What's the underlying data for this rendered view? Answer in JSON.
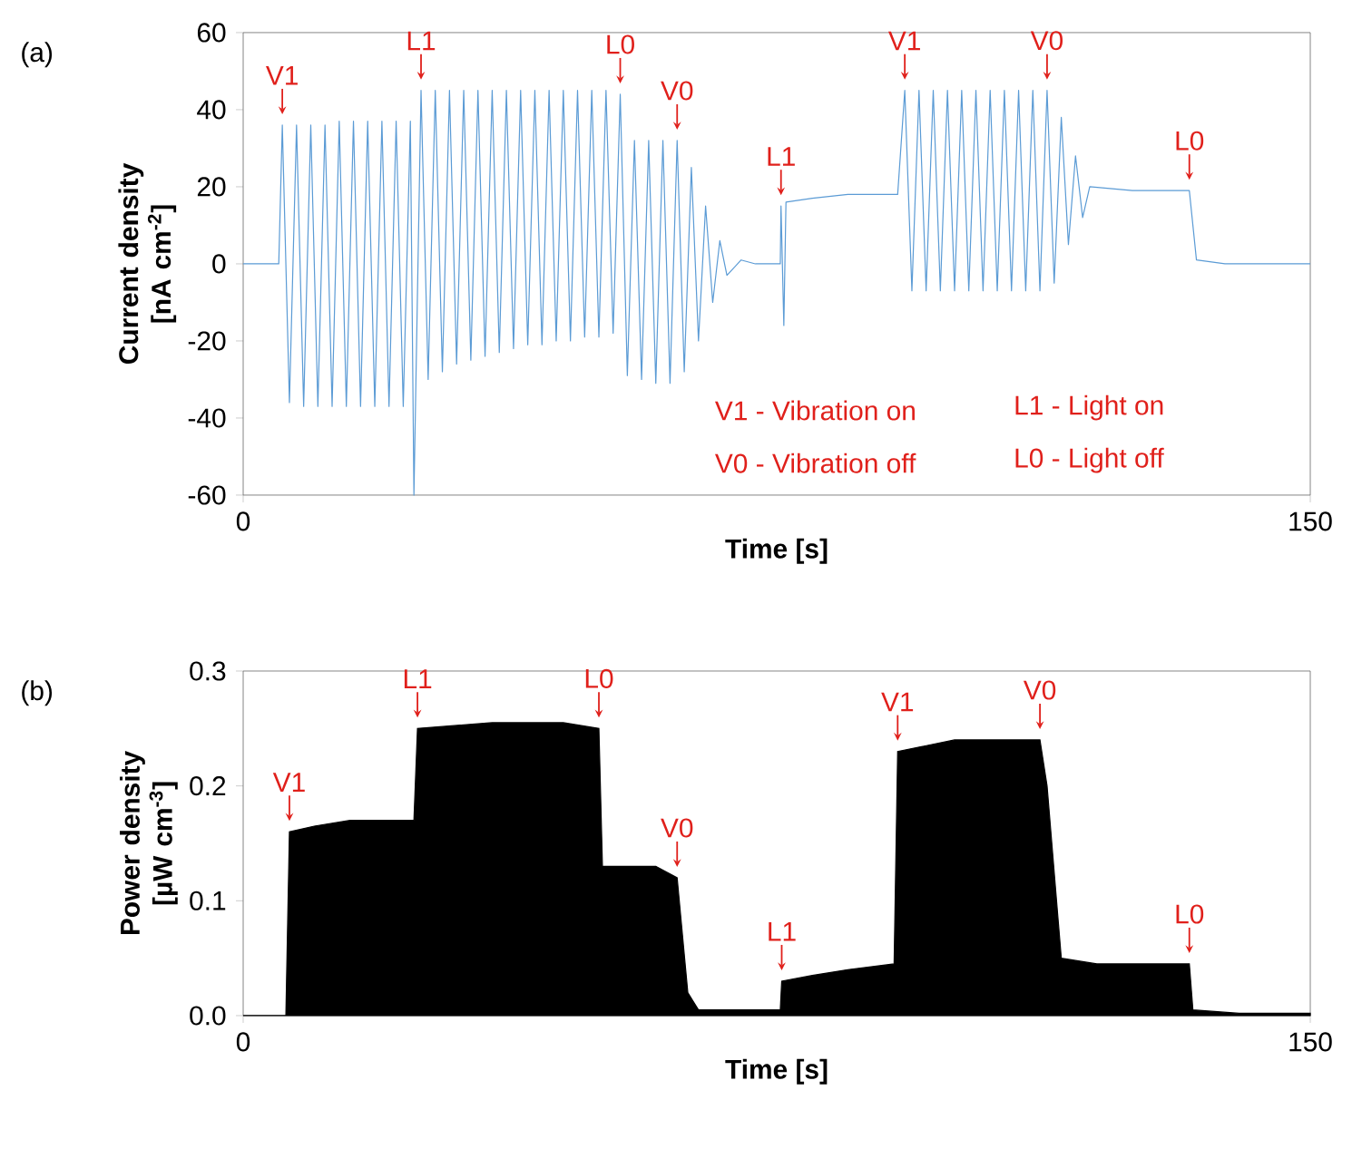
{
  "chart_data": [
    {
      "type": "line",
      "title": "(a)",
      "xlabel": "Time [s]",
      "ylabel": "Current density [nA cm$^{-2}$]",
      "color": "#5b9bd5",
      "xlim": [
        0,
        150
      ],
      "xticks": [
        0,
        150
      ],
      "ylim": [
        -60,
        60
      ],
      "yticks": [
        -60,
        -40,
        -20,
        0,
        20,
        40,
        60
      ],
      "x": [
        0,
        5,
        5.5,
        6.5,
        7.5,
        8.5,
        9.5,
        10.5,
        11.5,
        12.5,
        13.5,
        14.5,
        15.5,
        16.5,
        17.5,
        18.5,
        19.5,
        20.5,
        21.5,
        22.5,
        23.5,
        24,
        25,
        26,
        27,
        28,
        29,
        30,
        31,
        32,
        33,
        34,
        35,
        36,
        37,
        38,
        39,
        40,
        41,
        42,
        43,
        44,
        45,
        46,
        47,
        48,
        49,
        50,
        51,
        52,
        53,
        54,
        55,
        56,
        57,
        58,
        59,
        60,
        61,
        62,
        63,
        64,
        65,
        66,
        67,
        68,
        70,
        72,
        75.5,
        75.6,
        76,
        76.3,
        80,
        85,
        92,
        93,
        94,
        95,
        96,
        97,
        98,
        99,
        100,
        101,
        102,
        103,
        104,
        105,
        106,
        107,
        108,
        109,
        110,
        111,
        112,
        113,
        114,
        115,
        116,
        117,
        118,
        119,
        125,
        133,
        134,
        138,
        150
      ],
      "values": [
        0,
        0,
        36,
        -36,
        36,
        -37,
        36,
        -37,
        36,
        -37,
        37,
        -37,
        37,
        -37,
        37,
        -37,
        37,
        -37,
        37,
        -37,
        37,
        -60,
        45,
        -30,
        45,
        -28,
        45,
        -26,
        45,
        -25,
        45,
        -24,
        45,
        -23,
        45,
        -22,
        45,
        -21,
        45,
        -21,
        45,
        -20,
        45,
        -20,
        45,
        -19,
        45,
        -19,
        45,
        -18,
        44,
        -29,
        32,
        -30,
        32,
        -31,
        32,
        -31,
        32,
        -28,
        25,
        -20,
        15,
        -10,
        6,
        -3,
        1,
        0,
        0,
        15,
        -16,
        16,
        17,
        18,
        18,
        45,
        -7,
        45,
        -7,
        45,
        -7,
        45,
        -7,
        45,
        -7,
        45,
        -7,
        45,
        -7,
        45,
        -7,
        45,
        -7,
        45,
        -7,
        45,
        -5,
        38,
        5,
        28,
        12,
        20,
        19,
        19,
        1,
        0,
        0
      ],
      "annotations": [
        {
          "text": "V1",
          "x": 5.5,
          "y": 36
        },
        {
          "text": "L1",
          "x": 25,
          "y": 45
        },
        {
          "text": "L0",
          "x": 53,
          "y": 44
        },
        {
          "text": "V0",
          "x": 61,
          "y": 32
        },
        {
          "text": "L1",
          "x": 75.6,
          "y": 15
        },
        {
          "text": "V1",
          "x": 93,
          "y": 45
        },
        {
          "text": "V0",
          "x": 113,
          "y": 45
        },
        {
          "text": "L0",
          "x": 133,
          "y": 19
        },
        "V1 - Vibration on",
        "L1 - Light on",
        "V0 - Vibration off",
        "L0 - Light off"
      ]
    },
    {
      "type": "area",
      "title": "(b)",
      "xlabel": "Time [s]",
      "ylabel": "Power density [µW cm$^{-3}$]",
      "color": "#000000",
      "xlim": [
        0,
        150
      ],
      "xticks": [
        0,
        150
      ],
      "ylim": [
        0,
        0.3
      ],
      "yticks": [
        {
          "value": 0,
          "label": "0.0"
        },
        {
          "value": 0.1,
          "label": "0.1"
        },
        {
          "value": 0.2,
          "label": "0.2"
        },
        {
          "value": 0.3,
          "label": "0.3"
        }
      ],
      "x": [
        0,
        6,
        6.5,
        10,
        15,
        24,
        24.5,
        35,
        45,
        50,
        50.5,
        58,
        61,
        62.5,
        64,
        75.5,
        75.7,
        80,
        85,
        91.5,
        92,
        100,
        112,
        113,
        115,
        120,
        133,
        133.5,
        140,
        150
      ],
      "values": [
        0,
        0,
        0.16,
        0.165,
        0.17,
        0.17,
        0.25,
        0.255,
        0.255,
        0.25,
        0.13,
        0.13,
        0.12,
        0.02,
        0.005,
        0.005,
        0.03,
        0.035,
        0.04,
        0.045,
        0.23,
        0.24,
        0.24,
        0.2,
        0.05,
        0.045,
        0.045,
        0.005,
        0.002,
        0.002
      ],
      "annotations": [
        {
          "text": "V1",
          "x": 6.5,
          "y": 0.16
        },
        {
          "text": "L1",
          "x": 24.5,
          "y": 0.25
        },
        {
          "text": "L0",
          "x": 50,
          "y": 0.25
        },
        {
          "text": "V0",
          "x": 61,
          "y": 0.12
        },
        {
          "text": "L1",
          "x": 75.7,
          "y": 0.03
        },
        {
          "text": "V1",
          "x": 92,
          "y": 0.23
        },
        {
          "text": "V0",
          "x": 112,
          "y": 0.24
        },
        {
          "text": "L0",
          "x": 133,
          "y": 0.045
        }
      ]
    }
  ]
}
